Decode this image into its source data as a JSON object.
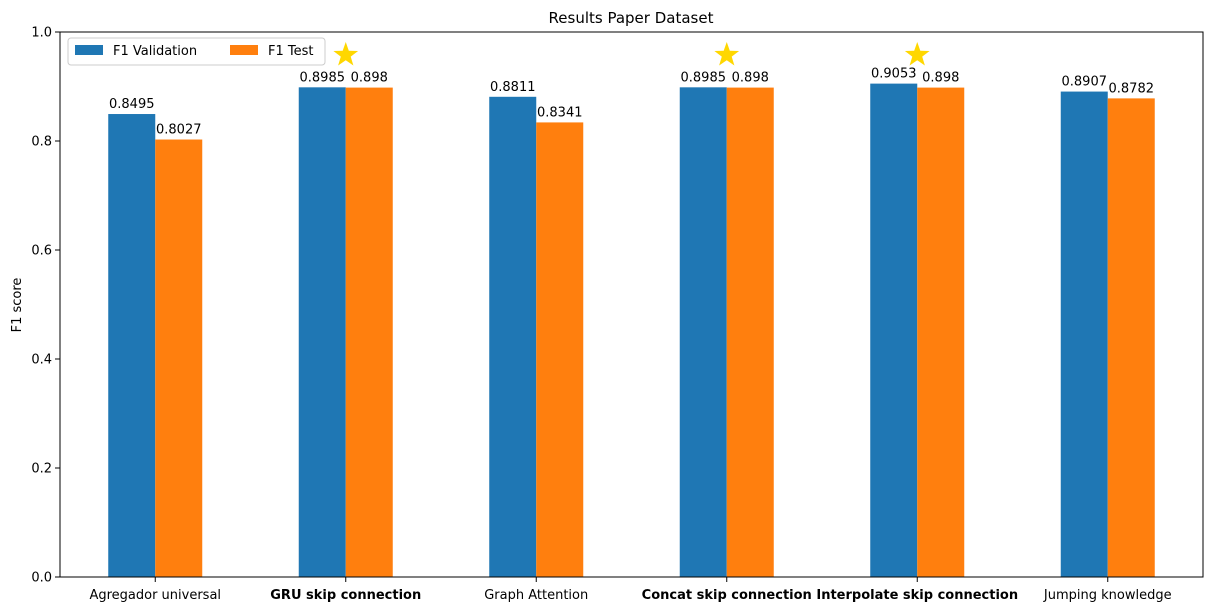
{
  "chart_data": {
    "type": "bar",
    "title": "Results Paper Dataset",
    "xlabel": "",
    "ylabel": "F1 score",
    "ylim": [
      0,
      1.0
    ],
    "yticks": [
      0.0,
      0.2,
      0.4,
      0.6,
      0.8,
      1.0
    ],
    "ytick_labels": [
      "0.0",
      "0.2",
      "0.4",
      "0.6",
      "0.8",
      "1.0"
    ],
    "grid": false,
    "legend_position": "top-left",
    "categories": [
      "Agregador universal",
      "GRU skip connection",
      "Graph Attention",
      "Concat skip connection",
      "Interpolate skip connection",
      "Jumping knowledge"
    ],
    "highlighted_categories": [
      false,
      true,
      false,
      true,
      true,
      false
    ],
    "highlight_color": "#ff0000",
    "star_markers": [
      false,
      true,
      false,
      true,
      true,
      false
    ],
    "star_color": "#ffd700",
    "series": [
      {
        "name": "F1 Validation",
        "color": "#1f77b4",
        "values": [
          0.8495,
          0.8985,
          0.8811,
          0.8985,
          0.9053,
          0.8907
        ],
        "labels": [
          "0.8495",
          "0.8985",
          "0.8811",
          "0.8985",
          "0.9053",
          "0.8907"
        ]
      },
      {
        "name": "F1 Test",
        "color": "#ff7f0e",
        "values": [
          0.8027,
          0.898,
          0.8341,
          0.898,
          0.898,
          0.8782
        ],
        "labels": [
          "0.8027",
          "0.898",
          "0.8341",
          "0.898",
          "0.898",
          "0.8782"
        ]
      }
    ]
  }
}
